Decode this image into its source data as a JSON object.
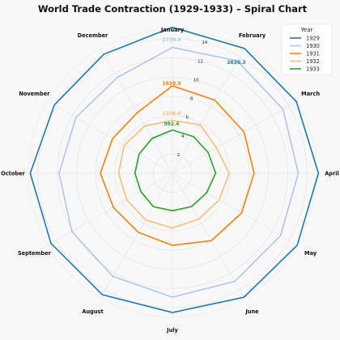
{
  "chart_data": {
    "type": "line",
    "subtype": "radar",
    "title": "World Trade Contraction (1929-1933) – Spiral Chart",
    "categories": [
      "January",
      "February",
      "March",
      "April",
      "May",
      "June",
      "July",
      "August",
      "September",
      "October",
      "November",
      "December"
    ],
    "r_ticks": [
      "2",
      "4",
      "6",
      "8",
      "10",
      "12",
      "14"
    ],
    "r_max": 15,
    "grid": true,
    "legend": {
      "title": "Year",
      "position": "top-right"
    },
    "series": [
      {
        "name": "1929",
        "color": "#1f77b4",
        "values": [
          15.2,
          15.0,
          14.9,
          15.2,
          15.0,
          14.9,
          14.5,
          14.6,
          14.6,
          14.8,
          14.2,
          14.3
        ]
      },
      {
        "name": "1930",
        "color": "#aec7e8",
        "values": [
          13.1,
          13.5,
          13.3,
          13.1,
          13.0,
          13.0,
          12.9,
          12.4,
          12.1,
          11.8,
          11.6,
          11.5
        ]
      },
      {
        "name": "1931",
        "color": "#ff7f0e",
        "values": [
          9.1,
          8.8,
          8.6,
          8.5,
          8.3,
          8.1,
          7.5,
          7.1,
          7.1,
          7.5,
          7.2,
          7.3
        ]
      },
      {
        "name": "1932",
        "color": "#ffbb78",
        "values": [
          5.5,
          5.8,
          5.3,
          5.9,
          5.6,
          5.5,
          5.7,
          5.6,
          5.5,
          5.6,
          5.8,
          5.7
        ]
      },
      {
        "name": "1933",
        "color": "#2ca02c",
        "values": [
          4.5,
          4.4,
          4.3,
          4.5,
          4.1,
          4.0,
          3.9,
          4.0,
          3.8,
          3.9,
          4.0,
          4.2
        ]
      }
    ],
    "annotations": [
      {
        "text": "2738.9",
        "series": "1930",
        "color": "#aec7e8"
      },
      {
        "text": "2630.3",
        "series": "1929",
        "color": "#1f77b4"
      },
      {
        "text": "1838.9",
        "series": "1931",
        "color": "#ff7f0e"
      },
      {
        "text": "1206.0",
        "series": "1932",
        "color": "#ffbb78"
      },
      {
        "text": "992.4",
        "series": "1933",
        "color": "#2ca02c"
      }
    ]
  }
}
